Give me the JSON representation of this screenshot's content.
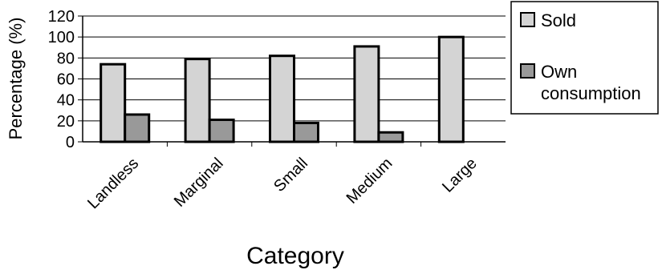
{
  "chart_data": {
    "type": "bar",
    "xlabel": "Category",
    "ylabel": "Percentage (%)",
    "ylim": [
      0,
      120
    ],
    "yticks": [
      "0",
      "20",
      "40",
      "60",
      "80",
      "100",
      "120"
    ],
    "categories": [
      "Landless",
      "Marginal",
      "Small",
      "Medium",
      "Large"
    ],
    "series": [
      {
        "name": "Sold",
        "values": [
          74,
          79,
          82,
          91,
          100
        ]
      },
      {
        "name": "Own consumption",
        "values": [
          26,
          21,
          18,
          9,
          0
        ]
      }
    ],
    "legend": {
      "placement": "top-right",
      "items": [
        {
          "lines": [
            "Sold"
          ]
        },
        {
          "lines": [
            "Own",
            "consumption"
          ]
        }
      ]
    },
    "grid": true,
    "colors": {
      "series_0": "#d4d4d4",
      "series_1": "#999999",
      "grid": "#000000",
      "edge": "#000000"
    }
  }
}
